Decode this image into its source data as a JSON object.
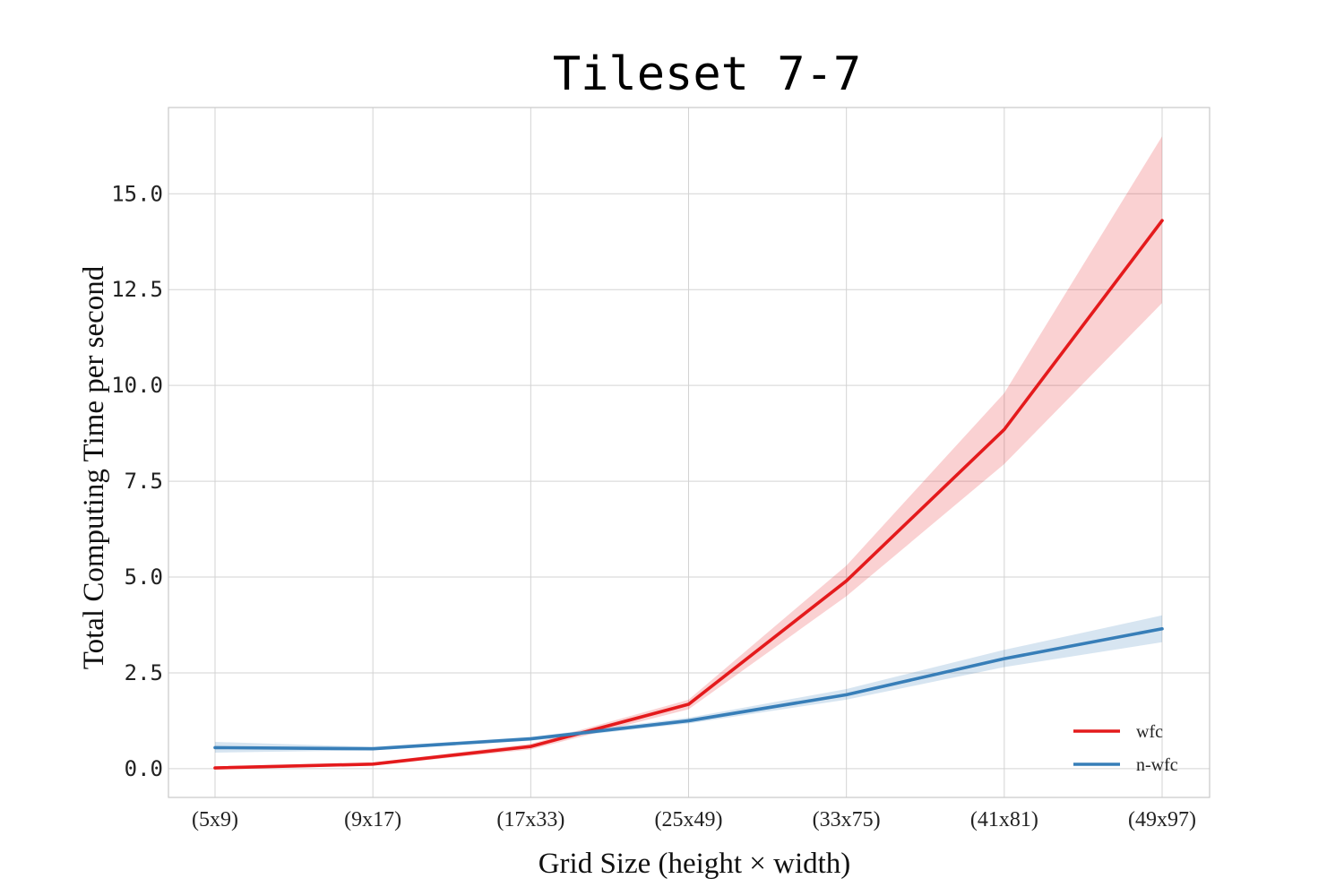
{
  "chart_data": {
    "type": "line",
    "title": "Tileset 7-7",
    "xlabel": "Grid Size (height × width)",
    "ylabel": "Total Computing Time per second",
    "categories": [
      "(5x9)",
      "(9x17)",
      "(17x33)",
      "(25x49)",
      "(33x75)",
      "(41x81)",
      "(49x97)"
    ],
    "yticks": [
      "0.0",
      "2.5",
      "5.0",
      "7.5",
      "10.0",
      "12.5",
      "15.0"
    ],
    "ylim": [
      -0.75,
      17.25
    ],
    "grid": true,
    "legend_position": "lower-right",
    "series": [
      {
        "name": "wfc",
        "color": "#e41a1c",
        "values": [
          0.02,
          0.12,
          0.58,
          1.68,
          4.9,
          8.85,
          14.3
        ],
        "lower": [
          0.0,
          0.08,
          0.5,
          1.55,
          4.5,
          7.95,
          12.15
        ],
        "upper": [
          0.06,
          0.16,
          0.65,
          1.8,
          5.3,
          9.8,
          16.5
        ]
      },
      {
        "name": "n-wfc",
        "color": "#377eb8",
        "values": [
          0.55,
          0.52,
          0.78,
          1.25,
          1.93,
          2.87,
          3.65
        ],
        "lower": [
          0.42,
          0.48,
          0.73,
          1.18,
          1.8,
          2.65,
          3.3
        ],
        "upper": [
          0.7,
          0.57,
          0.83,
          1.33,
          2.08,
          3.1,
          4.0
        ]
      }
    ]
  }
}
